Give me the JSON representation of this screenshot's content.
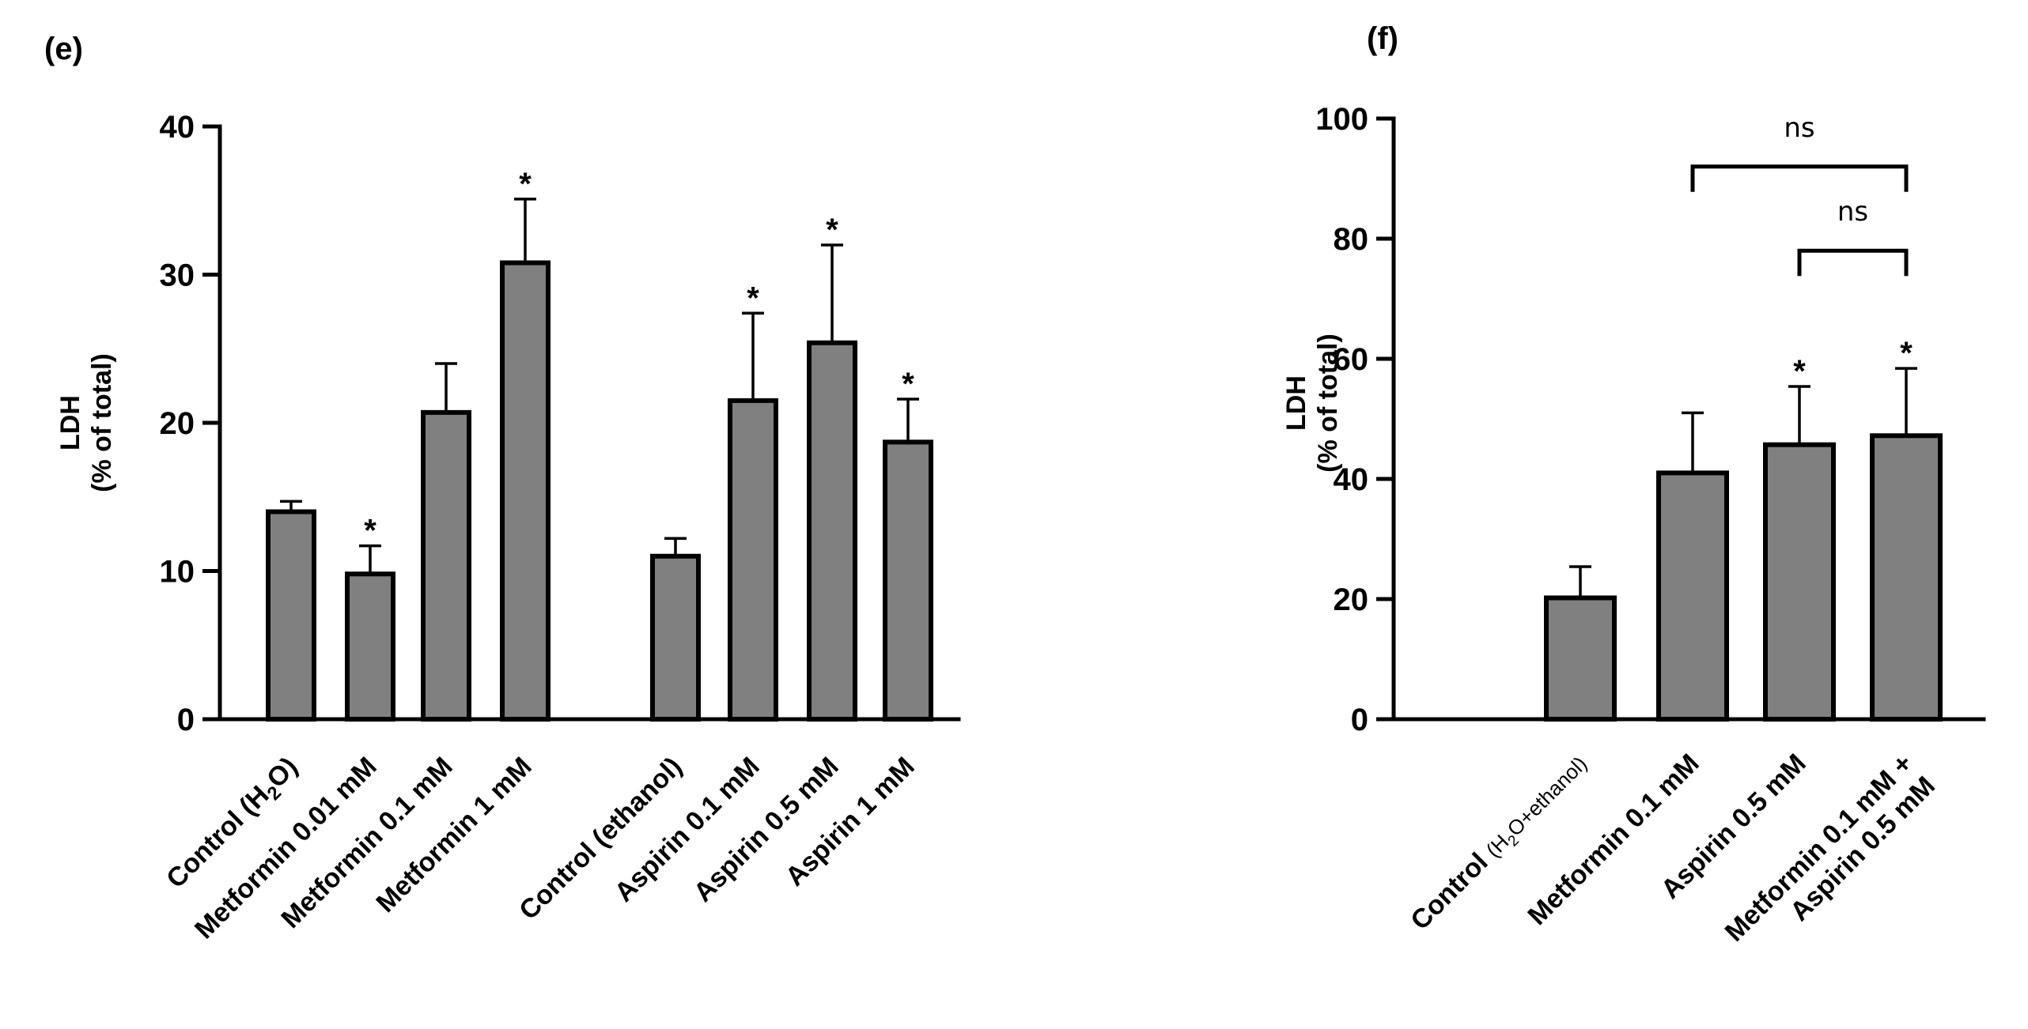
{
  "chart_data": [
    {
      "panel_label": "(e)",
      "type": "bar",
      "ylabel_lines": [
        "LDH",
        "(% of total)"
      ],
      "ylim": [
        0,
        40
      ],
      "yticks": [
        "0",
        "10",
        "20",
        "30",
        "40"
      ],
      "bar_color": "#808080",
      "bars": [
        {
          "label": "Control (H2O)",
          "label_parts": [
            "Control (H",
            "2",
            "O)"
          ],
          "value": 14.0,
          "error": 0.7,
          "sig": ""
        },
        {
          "label": "Metformin 0.01 mM",
          "value": 9.8,
          "error": 1.9,
          "sig": "*"
        },
        {
          "label": "Metformin 0.1 mM",
          "value": 20.7,
          "error": 3.3,
          "sig": ""
        },
        {
          "label": "Metformin 1 mM",
          "value": 30.8,
          "error": 4.3,
          "sig": "*"
        },
        {
          "label": "Control (ethanol)",
          "value": 11.0,
          "error": 1.2,
          "sig": ""
        },
        {
          "label": "Aspirin 0.1 mM",
          "value": 21.5,
          "error": 5.9,
          "sig": "*"
        },
        {
          "label": "Aspirin 0.5 mM",
          "value": 25.4,
          "error": 6.6,
          "sig": "*"
        },
        {
          "label": "Aspirin 1 mM",
          "value": 18.7,
          "error": 2.9,
          "sig": "*"
        }
      ]
    },
    {
      "panel_label": "(f)",
      "type": "bar",
      "ylabel_lines": [
        "LDH",
        "(% of total)"
      ],
      "ylim": [
        0,
        100
      ],
      "yticks": [
        "0",
        "20",
        "40",
        "60",
        "80",
        "100"
      ],
      "bar_color": "#808080",
      "bars": [
        {
          "label": "Control (H2O+ethanol)",
          "label_parts": [
            "Control ",
            "(H",
            "2",
            "O+ethanol)"
          ],
          "value": 20.2,
          "error": 5.2,
          "sig": ""
        },
        {
          "label": "Metformin 0.1 mM",
          "value": 41.0,
          "error": 10.0,
          "sig": ""
        },
        {
          "label": "Aspirin 0.5 mM",
          "value": 45.7,
          "error": 9.7,
          "sig": "*"
        },
        {
          "label": "Metformin 0.1 mM + Aspirin 0.5 mM",
          "label_lines": [
            "Metformin 0.1 mM +",
            "Aspirin 0.5 mM"
          ],
          "value": 47.2,
          "error": 11.2,
          "sig": "*"
        }
      ],
      "comparisons": [
        {
          "from": "Metformin 0.1 mM",
          "to": "Metformin 0.1 mM + Aspirin 0.5 mM",
          "text": "ns",
          "level": 92
        },
        {
          "from": "Aspirin 0.5 mM",
          "to": "Metformin 0.1 mM + Aspirin 0.5 mM",
          "text": "ns",
          "level": 78
        }
      ]
    }
  ]
}
